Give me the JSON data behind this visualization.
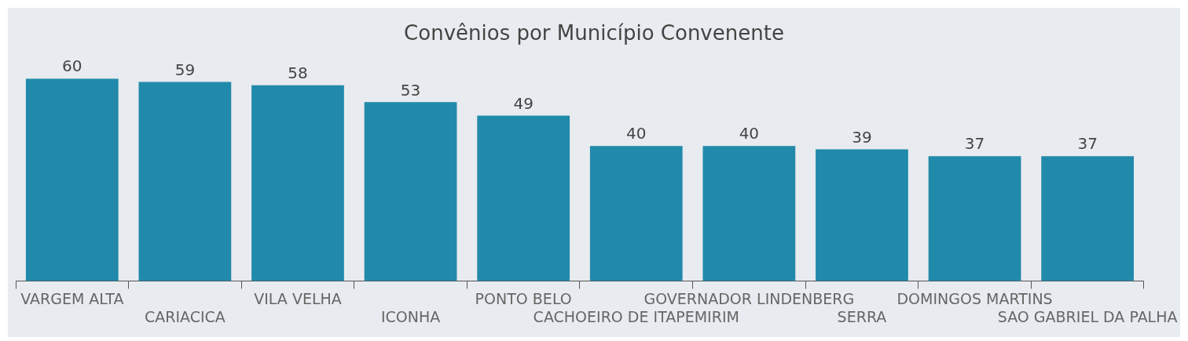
{
  "chart_data": {
    "type": "bar",
    "title": "Convênios por Município Convenente",
    "categories": [
      "VARGEM ALTA",
      "CARIACICA",
      "VILA VELHA",
      "ICONHA",
      "PONTO BELO",
      "CACHOEIRO DE ITAPEMIRIM",
      "GOVERNADOR LINDENBERG",
      "SERRA",
      "DOMINGOS MARTINS",
      "SAO GABRIEL DA PALHA"
    ],
    "values": [
      60,
      59,
      58,
      53,
      49,
      40,
      40,
      39,
      37,
      37
    ],
    "color": "#218aab",
    "data_labels": true,
    "grid": false,
    "legend": false
  }
}
